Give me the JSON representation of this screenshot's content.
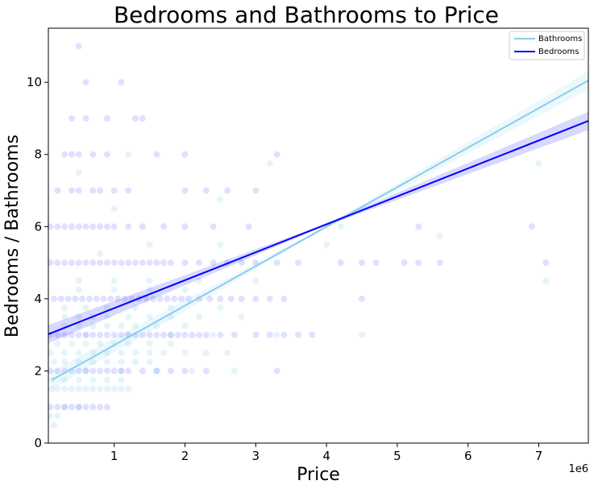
{
  "chart_data": {
    "type": "scatter",
    "title": "Bedrooms and Bathrooms to Price",
    "xlabel": "Price",
    "ylabel": "Bedrooms / Bathrooms",
    "x_offset_label": "1e6",
    "xlim": [
      0.07,
      7.7
    ],
    "ylim": [
      0,
      11.5
    ],
    "x_ticks": [
      1,
      2,
      3,
      4,
      5,
      6,
      7
    ],
    "y_ticks": [
      0,
      2,
      4,
      6,
      8,
      10
    ],
    "grid": false,
    "legend_position": "top-right",
    "series": [
      {
        "name": "Bathrooms",
        "color": "#87ceeb",
        "points": [
          [
            0.1,
            0.75
          ],
          [
            0.15,
            0.5
          ],
          [
            0.2,
            0.75
          ],
          [
            0.3,
            1.0
          ],
          [
            0.5,
            1.0
          ],
          [
            0.12,
            1.5
          ],
          [
            0.2,
            1.5
          ],
          [
            0.3,
            1.5
          ],
          [
            0.4,
            1.5
          ],
          [
            0.5,
            1.5
          ],
          [
            0.6,
            1.5
          ],
          [
            0.7,
            1.5
          ],
          [
            0.8,
            1.5
          ],
          [
            0.9,
            1.5
          ],
          [
            1.0,
            1.5
          ],
          [
            1.1,
            1.5
          ],
          [
            1.2,
            1.5
          ],
          [
            0.12,
            1.75
          ],
          [
            0.3,
            1.75
          ],
          [
            0.5,
            1.75
          ],
          [
            0.7,
            1.75
          ],
          [
            0.9,
            1.75
          ],
          [
            1.1,
            1.75
          ],
          [
            0.15,
            2.25
          ],
          [
            0.3,
            2.25
          ],
          [
            0.5,
            2.25
          ],
          [
            0.7,
            2.25
          ],
          [
            0.9,
            2.25
          ],
          [
            1.1,
            2.25
          ],
          [
            1.3,
            2.25
          ],
          [
            1.5,
            2.25
          ],
          [
            0.1,
            2.5
          ],
          [
            0.3,
            2.5
          ],
          [
            0.5,
            2.5
          ],
          [
            0.7,
            2.5
          ],
          [
            0.9,
            2.5
          ],
          [
            1.1,
            2.5
          ],
          [
            1.3,
            2.5
          ],
          [
            1.5,
            2.5
          ],
          [
            1.7,
            2.5
          ],
          [
            2.0,
            2.5
          ],
          [
            2.3,
            2.5
          ],
          [
            2.6,
            2.5
          ],
          [
            0.2,
            2.75
          ],
          [
            0.4,
            2.75
          ],
          [
            0.6,
            2.75
          ],
          [
            0.8,
            2.75
          ],
          [
            1.0,
            2.75
          ],
          [
            1.2,
            2.75
          ],
          [
            1.5,
            2.75
          ],
          [
            1.8,
            2.75
          ],
          [
            0.3,
            3.25
          ],
          [
            0.5,
            3.25
          ],
          [
            0.7,
            3.25
          ],
          [
            0.9,
            3.25
          ],
          [
            1.1,
            3.25
          ],
          [
            1.3,
            3.25
          ],
          [
            1.6,
            3.25
          ],
          [
            2.0,
            3.25
          ],
          [
            0.3,
            3.5
          ],
          [
            0.5,
            3.5
          ],
          [
            0.7,
            3.5
          ],
          [
            0.9,
            3.5
          ],
          [
            1.2,
            3.5
          ],
          [
            1.5,
            3.5
          ],
          [
            1.8,
            3.5
          ],
          [
            2.2,
            3.5
          ],
          [
            2.8,
            3.5
          ],
          [
            0.3,
            3.75
          ],
          [
            0.6,
            3.75
          ],
          [
            0.9,
            3.75
          ],
          [
            1.3,
            3.75
          ],
          [
            1.8,
            3.75
          ],
          [
            2.5,
            3.75
          ],
          [
            0.5,
            4.25
          ],
          [
            1.0,
            4.25
          ],
          [
            1.5,
            4.25
          ],
          [
            2.0,
            4.25
          ],
          [
            0.5,
            4.5
          ],
          [
            1.0,
            4.5
          ],
          [
            1.5,
            4.5
          ],
          [
            2.2,
            4.5
          ],
          [
            3.0,
            4.5
          ],
          [
            7.1,
            4.5
          ],
          [
            0.8,
            5.25
          ],
          [
            1.5,
            5.5
          ],
          [
            2.5,
            5.5
          ],
          [
            4.0,
            5.5
          ],
          [
            5.6,
            5.75
          ],
          [
            1.0,
            6.5
          ],
          [
            2.5,
            6.75
          ],
          [
            4.2,
            6.0
          ],
          [
            0.5,
            7.5
          ],
          [
            7.0,
            7.75
          ],
          [
            1.2,
            8.0
          ],
          [
            3.2,
            7.75
          ],
          [
            0.6,
            2.0
          ],
          [
            1.1,
            2.0
          ],
          [
            1.6,
            2.0
          ],
          [
            2.1,
            2.0
          ],
          [
            2.7,
            2.0
          ],
          [
            0.6,
            3.0
          ],
          [
            1.2,
            3.0
          ],
          [
            1.8,
            3.0
          ],
          [
            2.4,
            3.0
          ],
          [
            3.3,
            3.0
          ],
          [
            4.5,
            3.0
          ]
        ],
        "regression": {
          "x": [
            0.12,
            7.7
          ],
          "y": [
            1.75,
            10.05
          ],
          "ci": 0.22
        }
      },
      {
        "name": "Bedrooms",
        "color": "#0000ff",
        "points": [
          [
            0.1,
            1.0
          ],
          [
            0.2,
            1.0
          ],
          [
            0.3,
            1.0
          ],
          [
            0.4,
            1.0
          ],
          [
            0.5,
            1.0
          ],
          [
            0.6,
            1.0
          ],
          [
            0.7,
            1.0
          ],
          [
            0.8,
            1.0
          ],
          [
            0.9,
            1.0
          ],
          [
            0.1,
            2.0
          ],
          [
            0.2,
            2.0
          ],
          [
            0.3,
            2.0
          ],
          [
            0.4,
            2.0
          ],
          [
            0.5,
            2.0
          ],
          [
            0.6,
            2.0
          ],
          [
            0.7,
            2.0
          ],
          [
            0.8,
            2.0
          ],
          [
            0.9,
            2.0
          ],
          [
            1.0,
            2.0
          ],
          [
            1.1,
            2.0
          ],
          [
            1.2,
            2.0
          ],
          [
            1.4,
            2.0
          ],
          [
            1.6,
            2.0
          ],
          [
            1.8,
            2.0
          ],
          [
            2.0,
            2.0
          ],
          [
            2.3,
            2.0
          ],
          [
            3.3,
            2.0
          ],
          [
            0.1,
            3.0
          ],
          [
            0.2,
            3.0
          ],
          [
            0.3,
            3.0
          ],
          [
            0.4,
            3.0
          ],
          [
            0.5,
            3.0
          ],
          [
            0.6,
            3.0
          ],
          [
            0.7,
            3.0
          ],
          [
            0.8,
            3.0
          ],
          [
            0.9,
            3.0
          ],
          [
            1.0,
            3.0
          ],
          [
            1.1,
            3.0
          ],
          [
            1.2,
            3.0
          ],
          [
            1.3,
            3.0
          ],
          [
            1.4,
            3.0
          ],
          [
            1.5,
            3.0
          ],
          [
            1.6,
            3.0
          ],
          [
            1.7,
            3.0
          ],
          [
            1.8,
            3.0
          ],
          [
            1.9,
            3.0
          ],
          [
            2.0,
            3.0
          ],
          [
            2.1,
            3.0
          ],
          [
            2.2,
            3.0
          ],
          [
            2.3,
            3.0
          ],
          [
            2.5,
            3.0
          ],
          [
            2.7,
            3.0
          ],
          [
            3.0,
            3.0
          ],
          [
            3.2,
            3.0
          ],
          [
            3.4,
            3.0
          ],
          [
            3.6,
            3.0
          ],
          [
            3.8,
            3.0
          ],
          [
            0.15,
            4.0
          ],
          [
            0.25,
            4.0
          ],
          [
            0.35,
            4.0
          ],
          [
            0.45,
            4.0
          ],
          [
            0.55,
            4.0
          ],
          [
            0.65,
            4.0
          ],
          [
            0.75,
            4.0
          ],
          [
            0.85,
            4.0
          ],
          [
            0.95,
            4.0
          ],
          [
            1.05,
            4.0
          ],
          [
            1.15,
            4.0
          ],
          [
            1.25,
            4.0
          ],
          [
            1.35,
            4.0
          ],
          [
            1.45,
            4.0
          ],
          [
            1.55,
            4.0
          ],
          [
            1.65,
            4.0
          ],
          [
            1.75,
            4.0
          ],
          [
            1.85,
            4.0
          ],
          [
            1.95,
            4.0
          ],
          [
            2.05,
            4.0
          ],
          [
            2.2,
            4.0
          ],
          [
            2.35,
            4.0
          ],
          [
            2.5,
            4.0
          ],
          [
            2.65,
            4.0
          ],
          [
            2.8,
            4.0
          ],
          [
            3.0,
            4.0
          ],
          [
            3.2,
            4.0
          ],
          [
            3.4,
            4.0
          ],
          [
            4.5,
            4.0
          ],
          [
            0.1,
            5.0
          ],
          [
            0.2,
            5.0
          ],
          [
            0.3,
            5.0
          ],
          [
            0.4,
            5.0
          ],
          [
            0.5,
            5.0
          ],
          [
            0.6,
            5.0
          ],
          [
            0.7,
            5.0
          ],
          [
            0.8,
            5.0
          ],
          [
            0.9,
            5.0
          ],
          [
            1.0,
            5.0
          ],
          [
            1.1,
            5.0
          ],
          [
            1.2,
            5.0
          ],
          [
            1.3,
            5.0
          ],
          [
            1.4,
            5.0
          ],
          [
            1.5,
            5.0
          ],
          [
            1.6,
            5.0
          ],
          [
            1.7,
            5.0
          ],
          [
            1.8,
            5.0
          ],
          [
            2.0,
            5.0
          ],
          [
            2.2,
            5.0
          ],
          [
            2.4,
            5.0
          ],
          [
            2.6,
            5.0
          ],
          [
            2.8,
            5.0
          ],
          [
            3.0,
            5.0
          ],
          [
            3.3,
            5.0
          ],
          [
            3.6,
            5.0
          ],
          [
            4.2,
            5.0
          ],
          [
            4.5,
            5.0
          ],
          [
            4.7,
            5.0
          ],
          [
            5.1,
            5.0
          ],
          [
            5.3,
            5.0
          ],
          [
            5.6,
            5.0
          ],
          [
            7.1,
            5.0
          ],
          [
            0.1,
            6.0
          ],
          [
            0.2,
            6.0
          ],
          [
            0.3,
            6.0
          ],
          [
            0.4,
            6.0
          ],
          [
            0.5,
            6.0
          ],
          [
            0.6,
            6.0
          ],
          [
            0.7,
            6.0
          ],
          [
            0.8,
            6.0
          ],
          [
            0.9,
            6.0
          ],
          [
            1.0,
            6.0
          ],
          [
            1.2,
            6.0
          ],
          [
            1.4,
            6.0
          ],
          [
            1.7,
            6.0
          ],
          [
            2.0,
            6.0
          ],
          [
            2.4,
            6.0
          ],
          [
            2.9,
            6.0
          ],
          [
            5.3,
            6.0
          ],
          [
            6.9,
            6.0
          ],
          [
            0.2,
            7.0
          ],
          [
            0.4,
            7.0
          ],
          [
            0.5,
            7.0
          ],
          [
            0.7,
            7.0
          ],
          [
            0.8,
            7.0
          ],
          [
            1.0,
            7.0
          ],
          [
            1.2,
            7.0
          ],
          [
            2.0,
            7.0
          ],
          [
            2.3,
            7.0
          ],
          [
            2.6,
            7.0
          ],
          [
            3.0,
            7.0
          ],
          [
            0.3,
            8.0
          ],
          [
            0.4,
            8.0
          ],
          [
            0.5,
            8.0
          ],
          [
            0.7,
            8.0
          ],
          [
            0.9,
            8.0
          ],
          [
            1.6,
            8.0
          ],
          [
            2.0,
            8.0
          ],
          [
            3.3,
            8.0
          ],
          [
            0.4,
            9.0
          ],
          [
            0.6,
            9.0
          ],
          [
            0.9,
            9.0
          ],
          [
            1.3,
            9.0
          ],
          [
            1.4,
            9.0
          ],
          [
            0.6,
            10.0
          ],
          [
            1.1,
            10.0
          ],
          [
            0.5,
            11.0
          ]
        ],
        "regression": {
          "x": [
            0.07,
            7.7
          ],
          "y": [
            3.02,
            8.93
          ],
          "ci": 0.22
        }
      }
    ]
  }
}
